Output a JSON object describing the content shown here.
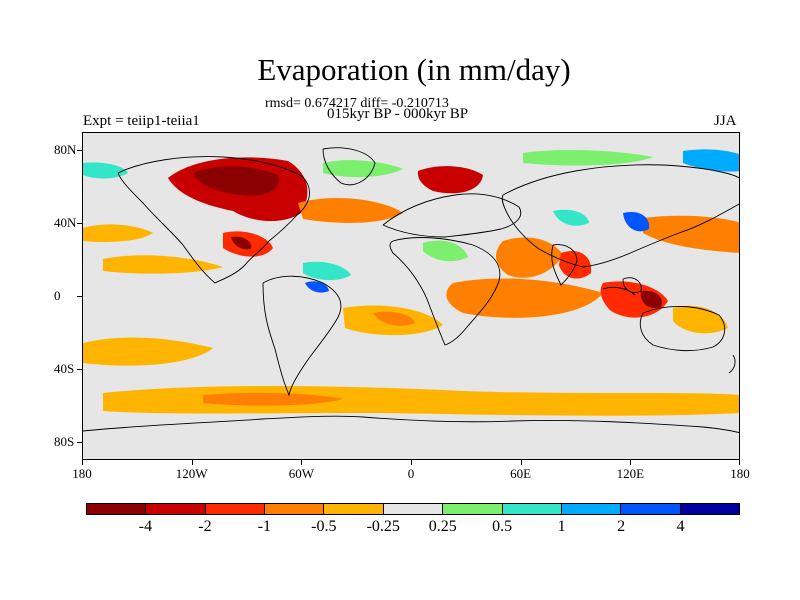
{
  "title": "Evaporation (in mm/day)",
  "stats_text": "rmsd= 0.674217 diff= -0.210713",
  "period_text": "015kyr BP - 000kyr BP",
  "left_label": "Expt = teiip1-teiia1",
  "right_label": "JJA",
  "map": {
    "projection": "cylindrical-equidistant",
    "lon_range": [
      -180,
      180
    ],
    "lat_range": [
      -90,
      90
    ],
    "background_color": "#e6e6e6",
    "lat_ticks": [
      {
        "value": 80,
        "label": "80N"
      },
      {
        "value": 40,
        "label": "40N"
      },
      {
        "value": 0,
        "label": "0"
      },
      {
        "value": -40,
        "label": "40S"
      },
      {
        "value": -80,
        "label": "80S"
      }
    ],
    "lon_ticks": [
      {
        "value": -180,
        "label": "180"
      },
      {
        "value": -120,
        "label": "120W"
      },
      {
        "value": -60,
        "label": "60W"
      },
      {
        "value": 0,
        "label": "0"
      },
      {
        "value": 60,
        "label": "60E"
      },
      {
        "value": 120,
        "label": "120E"
      },
      {
        "value": 180,
        "label": "180"
      }
    ]
  },
  "colorbar": {
    "colors": [
      "#8b0000",
      "#c80000",
      "#ff2a00",
      "#ff8000",
      "#ffb400",
      "#e6e6e6",
      "#7cf06e",
      "#33e6c8",
      "#00aaff",
      "#0055ff",
      "#0000a0"
    ],
    "labels": [
      "-4",
      "-2",
      "-1",
      "-0.5",
      "-0.25",
      "0.25",
      "0.5",
      "1",
      "2",
      "4"
    ]
  }
}
